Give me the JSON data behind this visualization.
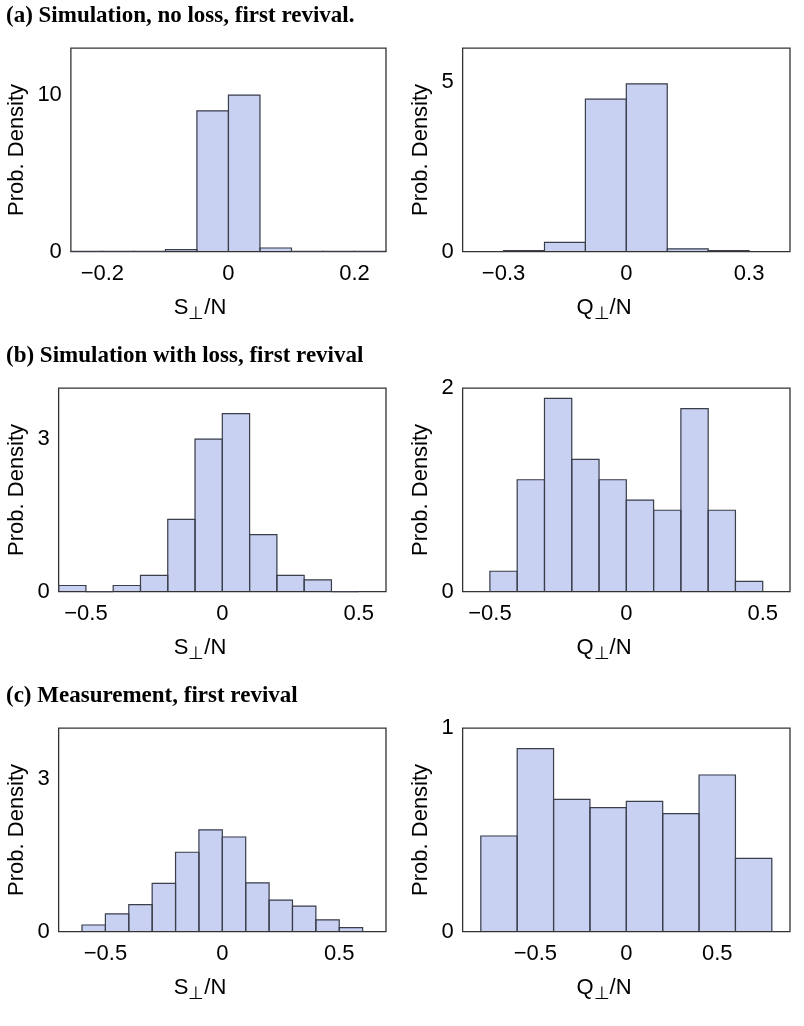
{
  "chart_data": [
    {
      "type": "histogram",
      "title": "(a) Simulation, no loss, first revival.",
      "xlabel": "S$_{⊥}$/N",
      "ylabel": "Prob. Density",
      "color": "#c9d1f3",
      "bins": [
        -0.25,
        -0.2,
        -0.15,
        -0.1,
        -0.05,
        0,
        0.05,
        0.1,
        0.15,
        0.2,
        0.25
      ],
      "values": [
        0.01,
        0.02,
        0.02,
        0.13,
        9,
        10,
        0.23,
        0.02,
        0.02,
        0.01
      ],
      "xlim": [
        -0.25,
        0.25
      ],
      "xticks": [
        {
          "value": -0.2,
          "label": "−0.2"
        },
        0,
        0.2
      ],
      "ylim": [
        0,
        13
      ],
      "yticks": [
        0,
        10
      ],
      "grid": false
    },
    {
      "type": "histogram",
      "xlabel": "Q$_{⊥}$/N",
      "ylabel": "Prob. Density",
      "color": "#c9d1f3",
      "bins": [
        -0.3,
        -0.2,
        -0.1,
        0,
        0.1,
        0.2,
        0.3
      ],
      "values": [
        0.03,
        0.27,
        4.5,
        4.95,
        0.08,
        0.03
      ],
      "xlim": [
        -0.4,
        0.4
      ],
      "xticks": [
        {
          "value": -0.3,
          "label": "−0.3"
        },
        0,
        0.3
      ],
      "ylim": [
        0,
        6
      ],
      "yticks": [
        0,
        5
      ],
      "grid": false
    },
    {
      "type": "histogram",
      "title": "(b) Simulation with loss, first revival",
      "xlabel": "S$_{⊥}$/N",
      "ylabel": "Prob. Density",
      "color": "#c9d1f3",
      "bins": [
        -0.6,
        -0.5,
        -0.4,
        -0.3,
        -0.2,
        -0.1,
        0,
        0.1,
        0.2,
        0.3,
        0.4,
        0.5
      ],
      "values": [
        0.12,
        0,
        0.12,
        0.32,
        1.42,
        3.0,
        3.5,
        1.12,
        0.32,
        0.23,
        0
      ],
      "xlim": [
        -0.6,
        0.6
      ],
      "xticks": [
        {
          "value": -0.5,
          "label": "−0.5"
        },
        0,
        0.5
      ],
      "ylim": [
        0,
        4
      ],
      "yticks": [
        0,
        3
      ],
      "grid": false
    },
    {
      "type": "histogram",
      "xlabel": "Q$_{⊥}$/N",
      "ylabel": "Prob. Density",
      "color": "#c9d1f3",
      "bins": [
        -0.5,
        -0.4,
        -0.3,
        -0.2,
        -0.1,
        0,
        0.1,
        0.2,
        0.3,
        0.4,
        0.5
      ],
      "values": [
        0.2,
        1.1,
        1.9,
        1.3,
        1.1,
        0.9,
        0.8,
        1.8,
        0.8,
        0.1
      ],
      "xlim": [
        -0.6,
        0.6
      ],
      "xticks": [
        {
          "value": -0.5,
          "label": "−0.5"
        },
        0,
        0.5
      ],
      "ylim": [
        0,
        2
      ],
      "yticks": [
        0,
        2
      ],
      "grid": false
    },
    {
      "type": "histogram",
      "title": "(c) Measurement, first revival",
      "xlabel": "S$_{⊥}$/N",
      "ylabel": "Prob. Density",
      "color": "#c9d1f3",
      "bins": [
        -0.6,
        -0.5,
        -0.4,
        -0.3,
        -0.2,
        -0.1,
        0,
        0.1,
        0.2,
        0.3,
        0.4,
        0.5,
        0.6
      ],
      "values": [
        0.13,
        0.35,
        0.53,
        0.95,
        1.56,
        2.0,
        1.86,
        0.96,
        0.62,
        0.5,
        0.23,
        0.08
      ],
      "xlim": [
        -0.7,
        0.7
      ],
      "xticks": [
        {
          "value": -0.5,
          "label": "−0.5"
        },
        0,
        0.5
      ],
      "ylim": [
        0,
        4
      ],
      "yticks": [
        0,
        3
      ],
      "grid": false
    },
    {
      "type": "histogram",
      "xlabel": "Q$_{⊥}$/N",
      "ylabel": "Prob. Density",
      "color": "#c9d1f3",
      "bins": [
        -0.8,
        -0.6,
        -0.4,
        -0.2,
        0,
        0.2,
        0.4,
        0.6,
        0.8
      ],
      "values": [
        0.47,
        0.9,
        0.65,
        0.61,
        0.64,
        0.58,
        0.77,
        0.36
      ],
      "xlim": [
        -0.9,
        0.9
      ],
      "xticks": [
        {
          "value": -0.5,
          "label": "−0.5"
        },
        0,
        {
          "value": 0.5,
          "label": "0.5"
        }
      ],
      "ylim": [
        0,
        1
      ],
      "yticks": [
        0,
        1
      ],
      "grid": false
    }
  ]
}
